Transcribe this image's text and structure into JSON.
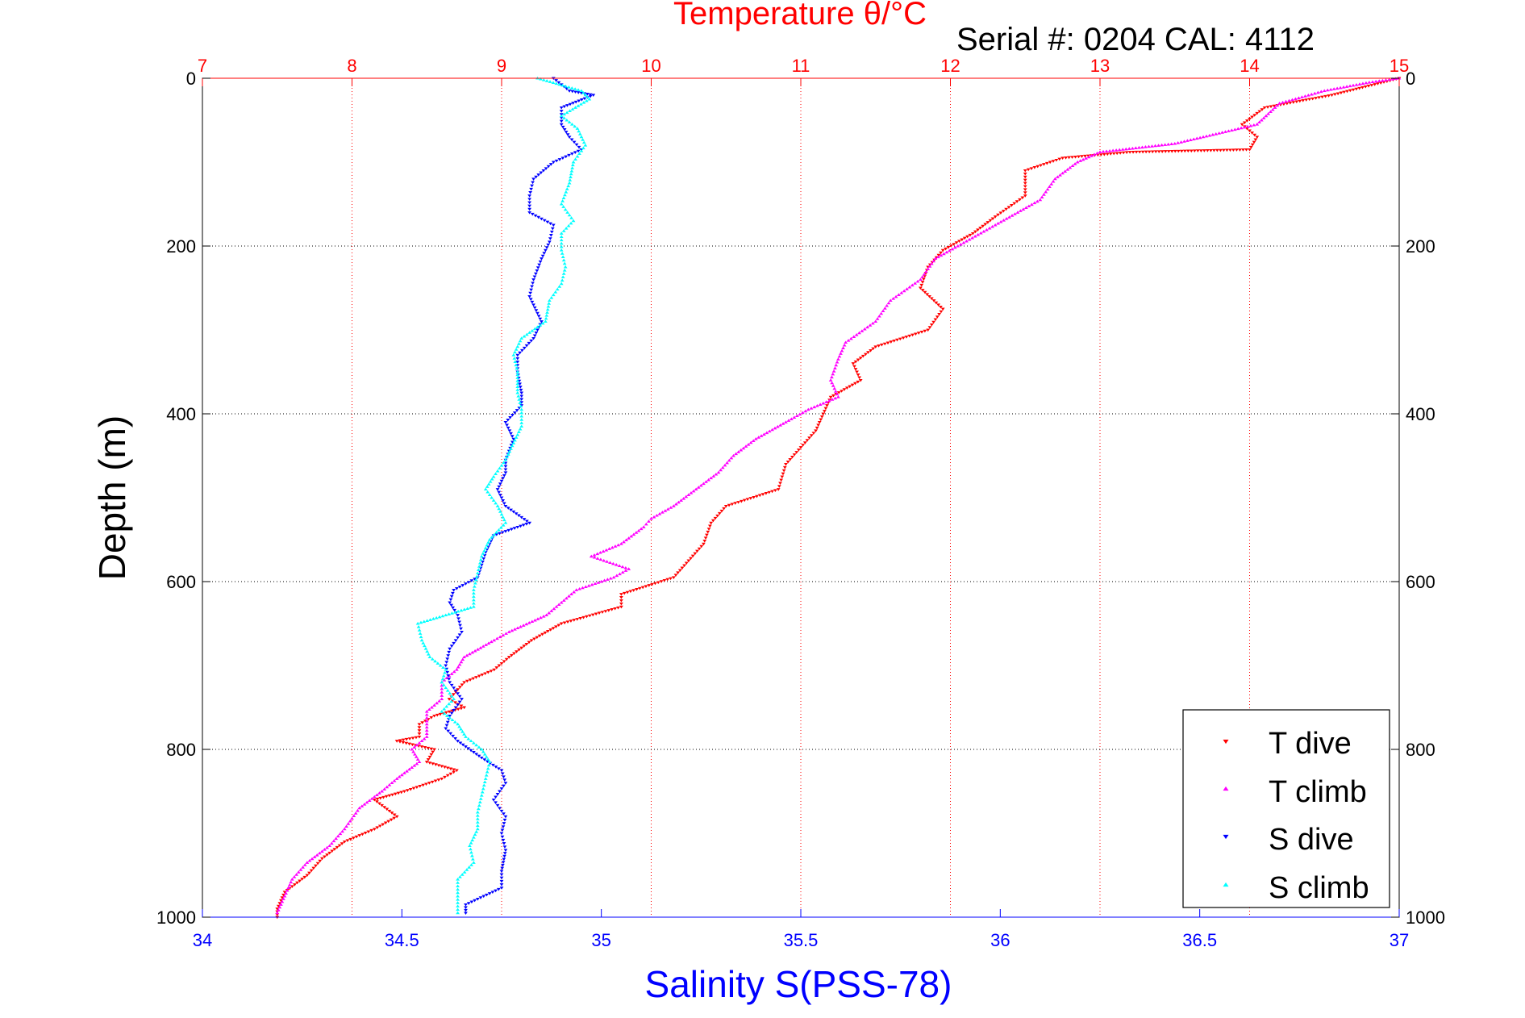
{
  "chart_data": {
    "type": "scatter",
    "title": "Temperature θ/°C",
    "subtitle": "Serial #: 0204  CAL: 4112",
    "xlabel": "Salinity S(PSS-78)",
    "ylabel": "Depth (m)",
    "x_bottom": {
      "label": "Salinity S(PSS-78)",
      "range": [
        34,
        37
      ],
      "ticks": [
        "34",
        "34.5",
        "35",
        "35.5",
        "36",
        "36.5",
        "37"
      ],
      "color": "#0000ff"
    },
    "x_top": {
      "label": "Temperature θ/°C",
      "range": [
        7,
        15
      ],
      "ticks": [
        "7",
        "8",
        "9",
        "10",
        "11",
        "12",
        "13",
        "14",
        "15"
      ],
      "color": "#ff0000"
    },
    "y": {
      "label": "Depth (m)",
      "range": [
        0,
        1000
      ],
      "reversed": true,
      "ticks": [
        "0",
        "200",
        "400",
        "600",
        "800",
        "1000"
      ]
    },
    "grid": true,
    "legend_position": "bottom-right",
    "series": [
      {
        "name": "T dive",
        "axis": "temperature",
        "color": "#ff0000",
        "marker": "triangle-down",
        "points": [
          [
            15.0,
            0
          ],
          [
            14.55,
            20
          ],
          [
            14.1,
            35
          ],
          [
            13.95,
            55
          ],
          [
            14.05,
            70
          ],
          [
            14.0,
            85
          ],
          [
            13.2,
            88
          ],
          [
            12.75,
            95
          ],
          [
            12.5,
            110
          ],
          [
            12.5,
            140
          ],
          [
            12.3,
            165
          ],
          [
            12.15,
            185
          ],
          [
            11.95,
            205
          ],
          [
            11.85,
            225
          ],
          [
            11.8,
            250
          ],
          [
            11.95,
            275
          ],
          [
            11.85,
            300
          ],
          [
            11.5,
            320
          ],
          [
            11.35,
            340
          ],
          [
            11.4,
            360
          ],
          [
            11.2,
            380
          ],
          [
            11.15,
            400
          ],
          [
            11.1,
            420
          ],
          [
            11.0,
            440
          ],
          [
            10.9,
            460
          ],
          [
            10.85,
            490
          ],
          [
            10.5,
            510
          ],
          [
            10.4,
            530
          ],
          [
            10.35,
            555
          ],
          [
            10.25,
            575
          ],
          [
            10.15,
            595
          ],
          [
            9.8,
            615
          ],
          [
            9.8,
            630
          ],
          [
            9.4,
            650
          ],
          [
            9.2,
            670
          ],
          [
            9.05,
            690
          ],
          [
            8.95,
            705
          ],
          [
            8.75,
            720
          ],
          [
            8.65,
            740
          ],
          [
            8.75,
            750
          ],
          [
            8.55,
            760
          ],
          [
            8.45,
            770
          ],
          [
            8.45,
            785
          ],
          [
            8.3,
            790
          ],
          [
            8.55,
            800
          ],
          [
            8.5,
            815
          ],
          [
            8.7,
            825
          ],
          [
            8.6,
            835
          ],
          [
            8.35,
            850
          ],
          [
            8.15,
            860
          ],
          [
            8.3,
            880
          ],
          [
            8.15,
            895
          ],
          [
            7.95,
            910
          ],
          [
            7.8,
            930
          ],
          [
            7.7,
            950
          ],
          [
            7.55,
            970
          ],
          [
            7.5,
            990
          ],
          [
            7.5,
            1000
          ]
        ]
      },
      {
        "name": "T climb",
        "axis": "temperature",
        "color": "#ff00ff",
        "marker": "triangle-up",
        "points": [
          [
            15.0,
            0
          ],
          [
            14.8,
            5
          ],
          [
            14.5,
            15
          ],
          [
            14.2,
            30
          ],
          [
            14.05,
            55
          ],
          [
            13.5,
            78
          ],
          [
            13.0,
            88
          ],
          [
            12.85,
            100
          ],
          [
            12.7,
            120
          ],
          [
            12.6,
            145
          ],
          [
            12.3,
            175
          ],
          [
            12.05,
            200
          ],
          [
            11.9,
            215
          ],
          [
            11.8,
            240
          ],
          [
            11.6,
            265
          ],
          [
            11.5,
            290
          ],
          [
            11.3,
            315
          ],
          [
            11.25,
            335
          ],
          [
            11.2,
            360
          ],
          [
            11.25,
            380
          ],
          [
            11.05,
            395
          ],
          [
            10.9,
            410
          ],
          [
            10.7,
            430
          ],
          [
            10.55,
            450
          ],
          [
            10.45,
            470
          ],
          [
            10.3,
            490
          ],
          [
            10.15,
            510
          ],
          [
            10.0,
            525
          ],
          [
            9.95,
            535
          ],
          [
            9.8,
            555
          ],
          [
            9.6,
            570
          ],
          [
            9.85,
            585
          ],
          [
            9.75,
            595
          ],
          [
            9.5,
            610
          ],
          [
            9.4,
            625
          ],
          [
            9.3,
            640
          ],
          [
            9.05,
            660
          ],
          [
            8.95,
            670
          ],
          [
            8.75,
            690
          ],
          [
            8.7,
            705
          ],
          [
            8.6,
            720
          ],
          [
            8.6,
            740
          ],
          [
            8.5,
            755
          ],
          [
            8.5,
            770
          ],
          [
            8.5,
            785
          ],
          [
            8.4,
            800
          ],
          [
            8.45,
            815
          ],
          [
            8.3,
            835
          ],
          [
            8.2,
            850
          ],
          [
            8.05,
            870
          ],
          [
            7.95,
            895
          ],
          [
            7.85,
            915
          ],
          [
            7.7,
            935
          ],
          [
            7.6,
            955
          ],
          [
            7.55,
            975
          ],
          [
            7.5,
            995
          ]
        ]
      },
      {
        "name": "S dive",
        "axis": "salinity",
        "color": "#0000ff",
        "marker": "triangle-down",
        "points": [
          [
            34.88,
            0
          ],
          [
            34.92,
            15
          ],
          [
            34.98,
            20
          ],
          [
            34.9,
            35
          ],
          [
            34.9,
            55
          ],
          [
            34.92,
            70
          ],
          [
            34.95,
            85
          ],
          [
            34.88,
            100
          ],
          [
            34.83,
            120
          ],
          [
            34.82,
            140
          ],
          [
            34.82,
            160
          ],
          [
            34.88,
            175
          ],
          [
            34.87,
            195
          ],
          [
            34.85,
            215
          ],
          [
            34.83,
            240
          ],
          [
            34.82,
            260
          ],
          [
            34.85,
            290
          ],
          [
            34.83,
            310
          ],
          [
            34.79,
            330
          ],
          [
            34.79,
            350
          ],
          [
            34.8,
            375
          ],
          [
            34.8,
            390
          ],
          [
            34.76,
            410
          ],
          [
            34.78,
            430
          ],
          [
            34.76,
            455
          ],
          [
            34.76,
            470
          ],
          [
            34.74,
            490
          ],
          [
            34.76,
            510
          ],
          [
            34.82,
            530
          ],
          [
            34.73,
            545
          ],
          [
            34.71,
            565
          ],
          [
            34.7,
            580
          ],
          [
            34.69,
            595
          ],
          [
            34.63,
            610
          ],
          [
            34.62,
            625
          ],
          [
            34.64,
            640
          ],
          [
            34.65,
            660
          ],
          [
            34.62,
            680
          ],
          [
            34.61,
            700
          ],
          [
            34.62,
            720
          ],
          [
            34.65,
            740
          ],
          [
            34.62,
            760
          ],
          [
            34.61,
            775
          ],
          [
            34.64,
            790
          ],
          [
            34.7,
            810
          ],
          [
            34.75,
            825
          ],
          [
            34.76,
            840
          ],
          [
            34.73,
            860
          ],
          [
            34.76,
            880
          ],
          [
            34.75,
            900
          ],
          [
            34.76,
            920
          ],
          [
            34.75,
            945
          ],
          [
            34.75,
            965
          ],
          [
            34.66,
            985
          ],
          [
            34.66,
            995
          ]
        ]
      },
      {
        "name": "S climb",
        "axis": "salinity",
        "color": "#00ffff",
        "marker": "triangle-up",
        "points": [
          [
            34.84,
            0
          ],
          [
            34.95,
            15
          ],
          [
            34.97,
            25
          ],
          [
            34.9,
            45
          ],
          [
            34.94,
            60
          ],
          [
            34.96,
            80
          ],
          [
            34.93,
            100
          ],
          [
            34.92,
            125
          ],
          [
            34.9,
            150
          ],
          [
            34.93,
            170
          ],
          [
            34.9,
            185
          ],
          [
            34.9,
            205
          ],
          [
            34.91,
            225
          ],
          [
            34.9,
            245
          ],
          [
            34.87,
            265
          ],
          [
            34.86,
            290
          ],
          [
            34.8,
            310
          ],
          [
            34.78,
            330
          ],
          [
            34.79,
            350
          ],
          [
            34.79,
            375
          ],
          [
            34.8,
            395
          ],
          [
            34.8,
            415
          ],
          [
            34.78,
            435
          ],
          [
            34.76,
            455
          ],
          [
            34.73,
            475
          ],
          [
            34.71,
            490
          ],
          [
            34.74,
            510
          ],
          [
            34.76,
            530
          ],
          [
            34.72,
            550
          ],
          [
            34.7,
            570
          ],
          [
            34.69,
            590
          ],
          [
            34.68,
            610
          ],
          [
            34.68,
            630
          ],
          [
            34.54,
            650
          ],
          [
            34.55,
            670
          ],
          [
            34.57,
            690
          ],
          [
            34.61,
            705
          ],
          [
            34.6,
            720
          ],
          [
            34.63,
            740
          ],
          [
            34.6,
            755
          ],
          [
            34.64,
            770
          ],
          [
            34.66,
            785
          ],
          [
            34.7,
            800
          ],
          [
            34.72,
            815
          ],
          [
            34.71,
            835
          ],
          [
            34.7,
            855
          ],
          [
            34.69,
            875
          ],
          [
            34.69,
            895
          ],
          [
            34.67,
            915
          ],
          [
            34.68,
            935
          ],
          [
            34.64,
            955
          ],
          [
            34.64,
            975
          ],
          [
            34.64,
            995
          ]
        ]
      }
    ]
  },
  "legend": [
    {
      "label": "T dive",
      "color": "#ff0000",
      "marker": "triangle-down"
    },
    {
      "label": "T climb",
      "color": "#ff00ff",
      "marker": "triangle-up"
    },
    {
      "label": "S dive",
      "color": "#0000ff",
      "marker": "triangle-down"
    },
    {
      "label": "S climb",
      "color": "#00ffff",
      "marker": "triangle-up"
    }
  ]
}
